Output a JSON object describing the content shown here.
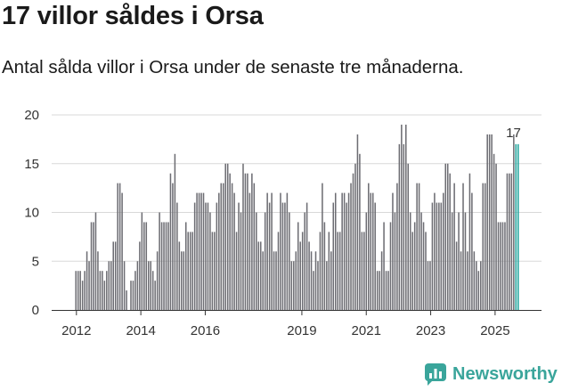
{
  "headline": "17 villor såldes i Orsa",
  "subtitle": "Antal sålda villor i Orsa under de senaste tre månaderna.",
  "brand": {
    "name": "Newsworthy"
  },
  "colors": {
    "bar": "#6d6d73",
    "highlight": "#1ea39b",
    "brand": "#3aa59b"
  },
  "chart_data": {
    "type": "bar",
    "title": "17 villor såldes i Orsa",
    "ylabel": "",
    "xlabel": "",
    "ylim": [
      0,
      20
    ],
    "yticks": [
      0,
      5,
      10,
      15,
      20
    ],
    "x_start_year": 2011.95,
    "x_end_year": 2025.75,
    "xticks": [
      {
        "year": 2012,
        "label": "2012"
      },
      {
        "year": 2014,
        "label": "2014"
      },
      {
        "year": 2016,
        "label": "2016"
      },
      {
        "year": 2019,
        "label": "2019"
      },
      {
        "year": 2021,
        "label": "2021"
      },
      {
        "year": 2023,
        "label": "2023"
      },
      {
        "year": 2025,
        "label": "2025"
      }
    ],
    "highlight_count": 2,
    "highlight_label": "17",
    "values": [
      4,
      4,
      4,
      3,
      4,
      6,
      5,
      9,
      9,
      10,
      6,
      4,
      4,
      3,
      4,
      5,
      5,
      7,
      7,
      13,
      13,
      12,
      5,
      2,
      0,
      3,
      3,
      4,
      5,
      7,
      10,
      9,
      9,
      5,
      5,
      4,
      3,
      6,
      10,
      9,
      9,
      9,
      9,
      14,
      13,
      16,
      11,
      7,
      6,
      6,
      9,
      8,
      8,
      8,
      11,
      12,
      12,
      12,
      12,
      11,
      11,
      10,
      8,
      8,
      11,
      12,
      13,
      13,
      15,
      15,
      14,
      13,
      12,
      8,
      11,
      10,
      15,
      14,
      14,
      12,
      14,
      13,
      10,
      7,
      7,
      6,
      10,
      12,
      11,
      12,
      6,
      6,
      8,
      12,
      11,
      11,
      12,
      10,
      5,
      5,
      6,
      9,
      7,
      8,
      10,
      11,
      7,
      6,
      4,
      6,
      5,
      8,
      13,
      9,
      5,
      8,
      6,
      11,
      12,
      8,
      8,
      12,
      12,
      11,
      12,
      13,
      14,
      15,
      18,
      16,
      8,
      8,
      10,
      13,
      12,
      12,
      11,
      4,
      4,
      6,
      9,
      4,
      4,
      9,
      12,
      10,
      13,
      17,
      19,
      17,
      19,
      15,
      10,
      8,
      9,
      13,
      13,
      10,
      9,
      8,
      5,
      5,
      11,
      12,
      11,
      11,
      11,
      12,
      15,
      15,
      14,
      10,
      13,
      7,
      10,
      6,
      13,
      10,
      6,
      14,
      12,
      6,
      5,
      4,
      5,
      13,
      13,
      18,
      18,
      18,
      16,
      15,
      9,
      9,
      9,
      9,
      14,
      14,
      14,
      18,
      17,
      17
    ]
  }
}
